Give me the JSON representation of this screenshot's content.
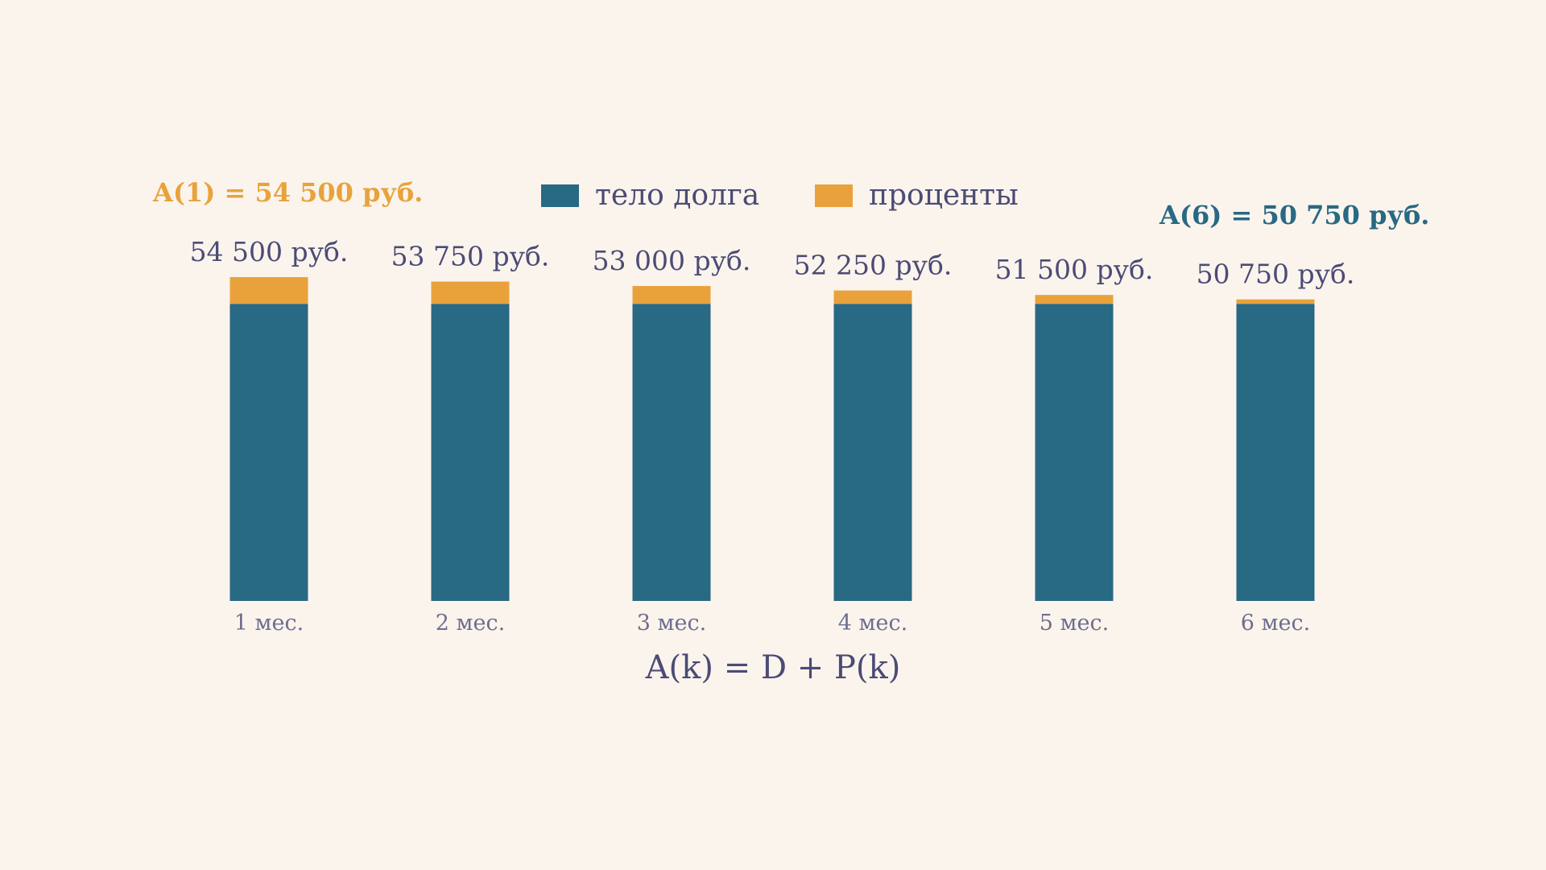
{
  "colors": {
    "background": "#FBF4ED",
    "principal": "#286983",
    "interest": "#E9A23B",
    "text": "#4B4B75",
    "tick_text": "#6E6E8E"
  },
  "legend": {
    "principal_label": "тело долга",
    "interest_label": "проценты"
  },
  "callouts": {
    "first": "A(1) = 54 500 руб.",
    "last": "A(6) = 50 750 руб."
  },
  "formula": "A(k) = D + P(k)",
  "chart_data": {
    "type": "bar",
    "stacked": true,
    "categories": [
      "1 мес.",
      "2 мес.",
      "3 мес.",
      "4 мес.",
      "5 мес.",
      "6 мес."
    ],
    "series": [
      {
        "name": "тело долга",
        "values": [
          50000,
          50000,
          50000,
          50000,
          50000,
          50000
        ]
      },
      {
        "name": "проценты",
        "values": [
          4500,
          3750,
          3000,
          2250,
          1500,
          750
        ]
      }
    ],
    "total_labels": [
      "54 500 руб.",
      "53 750 руб.",
      "53 000 руб.",
      "52 250 руб.",
      "51 500 руб.",
      "50 750 руб."
    ],
    "title": "",
    "xlabel": "",
    "ylabel": "",
    "ylim": [
      0,
      54500
    ],
    "grid": false,
    "legend_position": "top"
  }
}
